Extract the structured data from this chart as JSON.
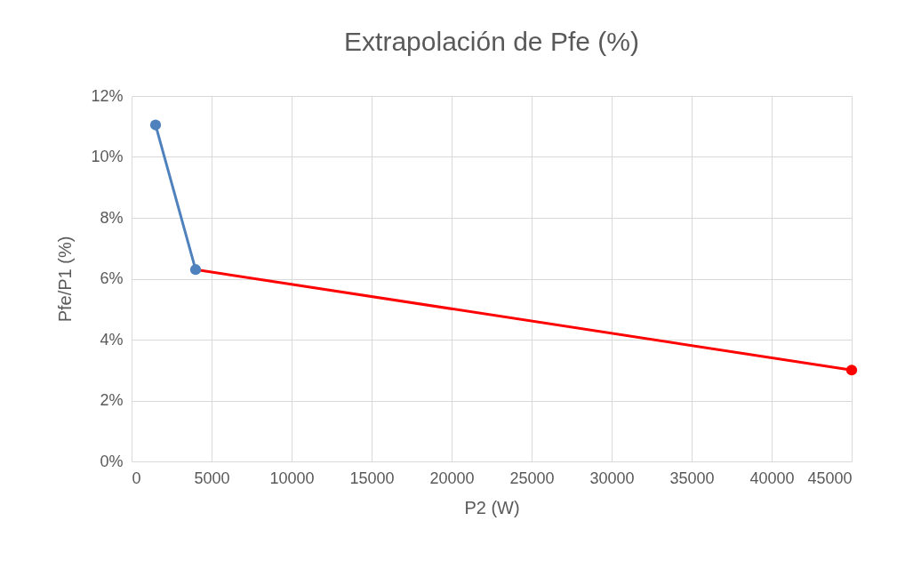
{
  "chart_data": {
    "type": "line",
    "title": "Extrapolación de Pfe (%)",
    "xlabel": "P2 (W)",
    "ylabel": "Pfe/P1 (%)",
    "xlim": [
      0,
      45000
    ],
    "xticks": [
      0,
      5000,
      10000,
      15000,
      20000,
      25000,
      30000,
      35000,
      40000,
      45000
    ],
    "ylim": [
      0,
      12
    ],
    "yticks": [
      {
        "value": 0,
        "label": "0%"
      },
      {
        "value": 2,
        "label": "2%"
      },
      {
        "value": 4,
        "label": "4%"
      },
      {
        "value": 6,
        "label": "6%"
      },
      {
        "value": 8,
        "label": "8%"
      },
      {
        "value": 10,
        "label": "10%"
      },
      {
        "value": 12,
        "label": "12%"
      }
    ],
    "grid": true,
    "series": [
      {
        "color": "#ff0000",
        "marker": "none",
        "x": [
          4000,
          45000
        ],
        "values": [
          6.3,
          3.0
        ]
      },
      {
        "type": "scatter",
        "color": "#ff0000",
        "marker": "circle",
        "x": [
          45000
        ],
        "values": [
          3.0
        ]
      },
      {
        "color": "#4f81bd",
        "marker": "circle",
        "x": [
          1500,
          4000
        ],
        "values": [
          11.05,
          6.3
        ]
      }
    ]
  }
}
